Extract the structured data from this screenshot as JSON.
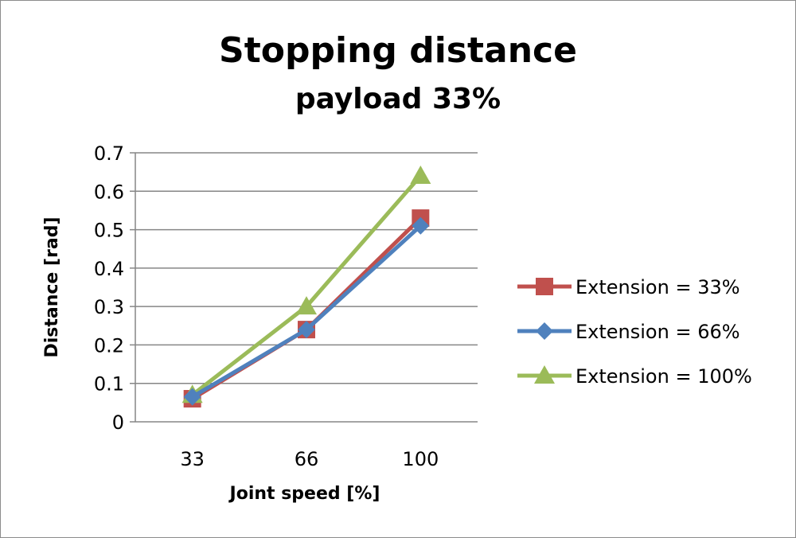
{
  "chart_data": {
    "type": "line",
    "title": "Stopping distance",
    "subtitle": "payload 33%",
    "xlabel": "Joint speed [%]",
    "ylabel": "Distance [rad]",
    "categories": [
      "33",
      "66",
      "100"
    ],
    "ylim": [
      0,
      0.7
    ],
    "yticks": [
      "0",
      "0.1",
      "0.2",
      "0.3",
      "0.4",
      "0.5",
      "0.6",
      "0.7"
    ],
    "grid": true,
    "legend_position": "right",
    "series": [
      {
        "name": "Extension = 33%",
        "values": [
          0.06,
          0.24,
          0.53
        ],
        "color": "#c0504d",
        "marker": "square"
      },
      {
        "name": "Extension = 66%",
        "values": [
          0.065,
          0.24,
          0.51
        ],
        "color": "#4f81bd",
        "marker": "diamond"
      },
      {
        "name": "Extension = 100%",
        "values": [
          0.07,
          0.3,
          0.64
        ],
        "color": "#9bbb59",
        "marker": "triangle"
      }
    ]
  }
}
